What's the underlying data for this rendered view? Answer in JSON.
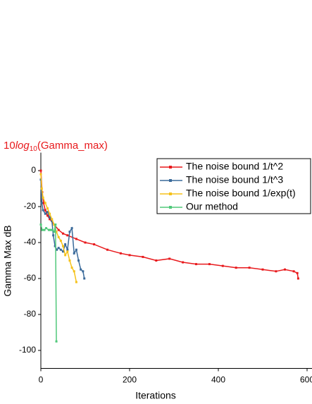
{
  "chart_data": {
    "type": "line",
    "title_parts": [
      "10",
      "log",
      "10",
      "(Gamma_max)"
    ],
    "title_color": "#e8191c",
    "x_label": "Iterations",
    "y_label": "Gamma Max dB",
    "xlim": [
      0,
      600
    ],
    "ylim": [
      -110,
      10
    ],
    "xticks": [
      0,
      200,
      400,
      600
    ],
    "yticks": [
      0,
      -20,
      -40,
      -60,
      -80,
      -100
    ],
    "legend": "upper right",
    "series": [
      {
        "name": "The noise bound  1/t^2",
        "color": "#e8191c",
        "x": [
          0,
          3,
          6,
          10,
          15,
          20,
          30,
          40,
          50,
          60,
          80,
          100,
          120,
          150,
          180,
          200,
          230,
          260,
          290,
          320,
          350,
          380,
          410,
          440,
          470,
          500,
          530,
          550,
          570,
          578,
          580
        ],
        "values": [
          0,
          -12,
          -18,
          -22,
          -25,
          -27,
          -30,
          -33,
          -35,
          -36,
          -38,
          -40,
          -41,
          -44,
          -46,
          -47,
          -48,
          -50,
          -49,
          -51,
          -52,
          -52,
          -53,
          -54,
          -54,
          -55,
          -56,
          -55,
          -56,
          -57,
          -60
        ]
      },
      {
        "name": "The noise bound  1/t^3",
        "color": "#3a6a9a",
        "x": [
          0,
          2,
          5,
          10,
          15,
          20,
          25,
          28,
          32,
          36,
          40,
          45,
          50,
          55,
          60,
          65,
          70,
          75,
          80,
          85,
          90,
          95,
          98
        ],
        "values": [
          -5,
          -18,
          -22,
          -24,
          -23,
          -26,
          -28,
          -36,
          -42,
          -44,
          -43,
          -44,
          -45,
          -41,
          -44,
          -34,
          -32,
          -46,
          -44,
          -50,
          -55,
          -56,
          -60
        ]
      },
      {
        "name": "The noise bound  1/exp(t)",
        "color": "#f5c21b",
        "x": [
          0,
          2,
          5,
          10,
          15,
          20,
          25,
          30,
          35,
          40,
          45,
          50,
          55,
          60,
          65,
          70,
          75,
          80
        ],
        "values": [
          -2,
          -10,
          -15,
          -18,
          -21,
          -24,
          -27,
          -30,
          -34,
          -37,
          -39,
          -42,
          -47,
          -45,
          -50,
          -54,
          -56,
          -62
        ]
      },
      {
        "name": "Our method",
        "color": "#50c87a",
        "x": [
          0,
          3,
          8,
          12,
          18,
          22,
          26,
          30,
          33,
          35
        ],
        "values": [
          -30,
          -33,
          -33,
          -32,
          -33,
          -33,
          -33,
          -34,
          -30,
          -95
        ]
      }
    ]
  }
}
